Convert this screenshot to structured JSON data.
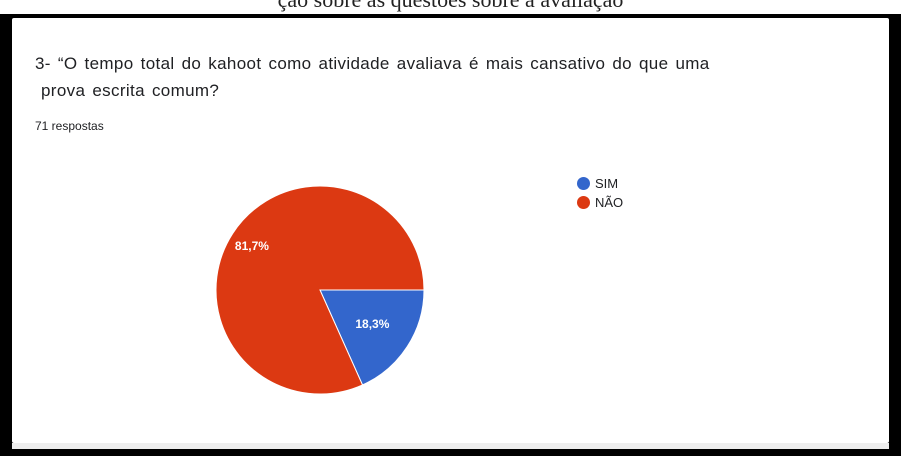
{
  "header": {
    "cropped_title": "ção sobre as questões sobre a avaliação"
  },
  "question": {
    "line1": "3- “O tempo total do kahoot como atividade avaliava é mais cansativo do que uma",
    "line2": "prova escrita comum?"
  },
  "responses_label": "71 respostas",
  "legend": [
    {
      "label": "SIM",
      "color": "#3366cc"
    },
    {
      "label": "NÃO",
      "color": "#dc3912"
    }
  ],
  "chart_data": {
    "type": "pie",
    "title": "",
    "categories": [
      "SIM",
      "NÃO"
    ],
    "values": [
      18.3,
      81.7
    ],
    "labels": [
      "18,3%",
      "81,7%"
    ],
    "colors": [
      "#3366cc",
      "#dc3912"
    ],
    "legend_position": "right"
  }
}
